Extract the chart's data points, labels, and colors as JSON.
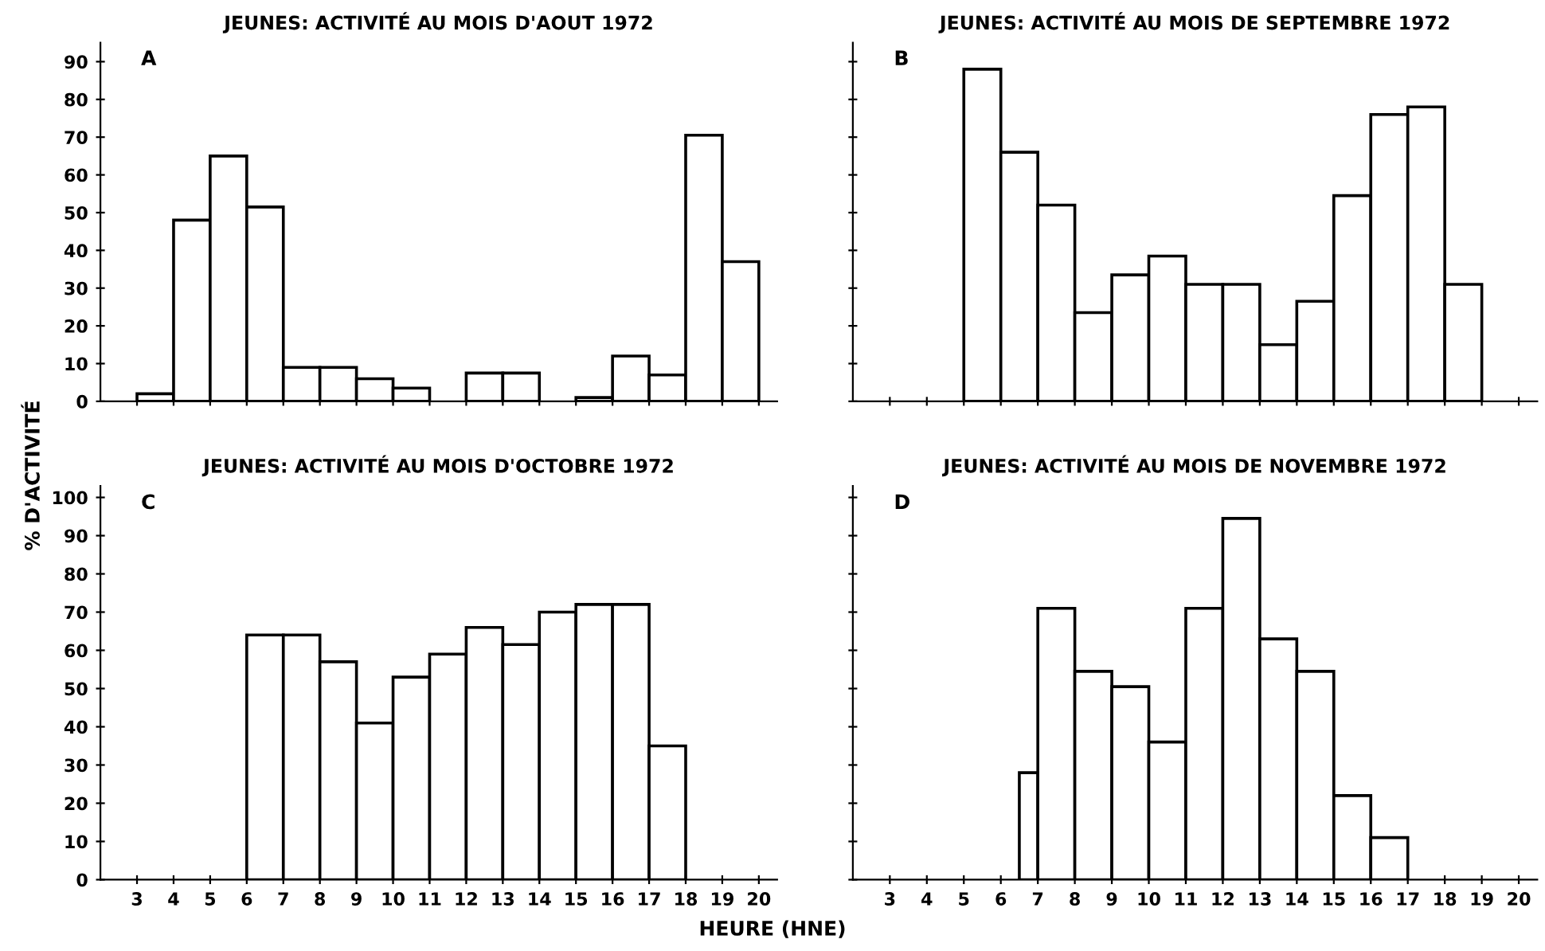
{
  "chart_data": [
    {
      "type": "histogram",
      "title": "JEUNES: ACTIVITÉ AU MOIS D'AOUT 1972",
      "annotations": [
        "A"
      ],
      "ylabel": "% D'ACTIVITÉ",
      "bins": [
        3,
        4,
        5,
        6,
        7,
        8,
        9,
        10,
        11,
        12,
        13,
        14,
        15,
        16,
        17,
        18,
        19,
        20
      ],
      "values": [
        2,
        48,
        65,
        51.5,
        9,
        9,
        6,
        3.5,
        null,
        7.5,
        7.5,
        null,
        1,
        12,
        7,
        70.5,
        37
      ],
      "color": "#ffffff",
      "xlim": [
        2,
        20.5
      ],
      "xticks": [
        3,
        4,
        5,
        6,
        7,
        8,
        9,
        10,
        11,
        12,
        13,
        14,
        15,
        16,
        17,
        18,
        19,
        20
      ],
      "ylim": [
        0,
        95
      ],
      "yticks": [
        0,
        10,
        20,
        30,
        40,
        50,
        60,
        70,
        80,
        90
      ],
      "tick_labels": "y",
      "grid": false,
      "legend": false
    },
    {
      "type": "histogram",
      "title": "JEUNES: ACTIVITÉ AU MOIS DE SEPTEMBRE 1972",
      "annotations": [
        "B"
      ],
      "bins": [
        5,
        6,
        7,
        8,
        9,
        10,
        11,
        12,
        13,
        14,
        15,
        16,
        17,
        18,
        19
      ],
      "values": [
        88,
        66,
        52,
        23.5,
        33.5,
        38.5,
        31,
        31,
        15,
        26.5,
        54.5,
        76,
        78,
        31
      ],
      "color": "#ffffff",
      "xlim": [
        2,
        20.5
      ],
      "xticks": [
        3,
        4,
        5,
        6,
        7,
        8,
        9,
        10,
        11,
        12,
        13,
        14,
        15,
        16,
        17,
        18,
        19,
        20
      ],
      "ylim": [
        0,
        95
      ],
      "yticks": [
        0,
        10,
        20,
        30,
        40,
        50,
        60,
        70,
        80,
        90
      ],
      "tick_labels": false,
      "grid": false,
      "legend": false
    },
    {
      "type": "histogram",
      "title": "JEUNES: ACTIVITÉ AU MOIS D'OCTOBRE 1972",
      "annotations": [
        "C"
      ],
      "xlabel": "HEURE (HNE)",
      "bins": [
        6,
        7,
        8,
        9,
        10,
        11,
        12,
        13,
        14,
        15,
        16,
        17,
        18
      ],
      "values": [
        64,
        64,
        57,
        41,
        53,
        59,
        66,
        61.5,
        70,
        72,
        72,
        35
      ],
      "color": "#ffffff",
      "xlim": [
        2,
        20.5
      ],
      "xticks": [
        3,
        4,
        5,
        6,
        7,
        8,
        9,
        10,
        11,
        12,
        13,
        14,
        15,
        16,
        17,
        18,
        19,
        20
      ],
      "ylim": [
        0,
        103
      ],
      "yticks": [
        0,
        10,
        20,
        30,
        40,
        50,
        60,
        70,
        80,
        90,
        100
      ],
      "grid": false,
      "legend": false
    },
    {
      "type": "histogram",
      "title": "JEUNES: ACTIVITÉ AU MOIS DE NOVEMBRE 1972",
      "annotations": [
        "D"
      ],
      "bins": [
        6.5,
        7,
        8,
        9,
        10,
        11,
        12,
        13,
        14,
        15,
        16,
        17
      ],
      "values": [
        28,
        71,
        54.5,
        50.5,
        36,
        71,
        94.5,
        63,
        54.5,
        22,
        11
      ],
      "color": "#ffffff",
      "xlim": [
        2,
        20.5
      ],
      "xticks": [
        3,
        4,
        5,
        6,
        7,
        8,
        9,
        10,
        11,
        12,
        13,
        14,
        15,
        16,
        17,
        18,
        19,
        20
      ],
      "ylim": [
        0,
        103
      ],
      "yticks": [
        0,
        10,
        20,
        30,
        40,
        50,
        60,
        70,
        80,
        90,
        100
      ],
      "tick_labels": "x",
      "grid": false,
      "legend": false
    }
  ]
}
